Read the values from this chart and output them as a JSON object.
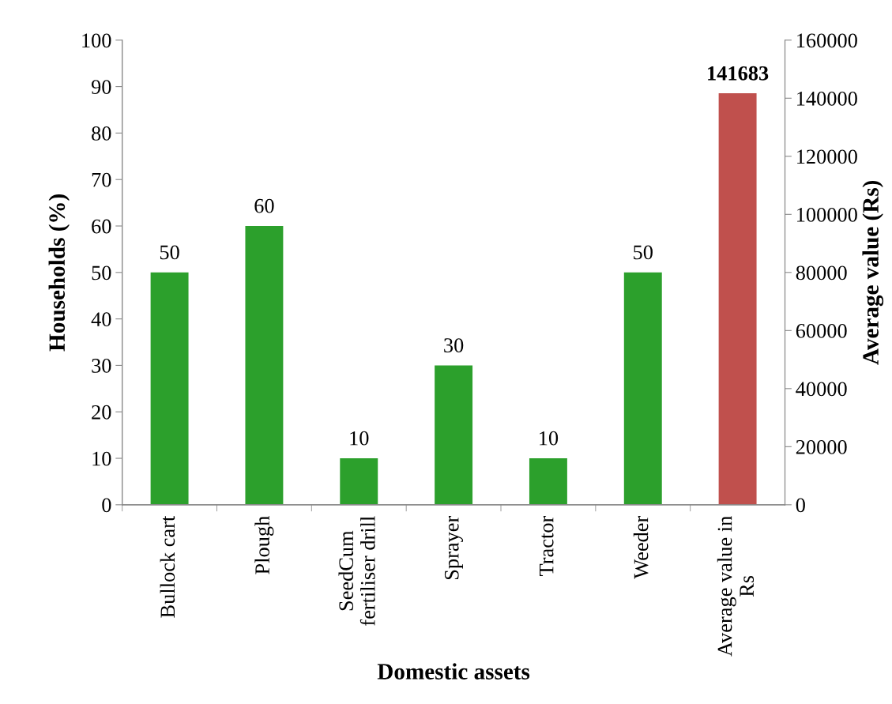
{
  "chart_data": {
    "type": "bar",
    "xlabel": "Domestic assets",
    "ylabel": "Households (%)",
    "y2label": "Average value (Rs)",
    "categories": [
      "Bullock cart",
      "Plough",
      "SeedCum\nfertiliser drill",
      "Sprayer",
      "Tractor",
      "Weeder",
      "Average value in\nRs"
    ],
    "series": [
      {
        "color": "#2ca02c",
        "values": [
          50,
          60,
          10,
          30,
          10,
          50,
          null
        ]
      },
      {
        "color": "#c0504d",
        "axis": "y2",
        "values": [
          null,
          null,
          null,
          null,
          null,
          null,
          141683
        ]
      }
    ],
    "ylim": [
      0,
      100
    ],
    "yticks": [
      0,
      10,
      20,
      30,
      40,
      50,
      60,
      70,
      80,
      90,
      100
    ],
    "y2lim": [
      0,
      160000
    ],
    "y2ticks": [
      0,
      20000,
      40000,
      60000,
      80000,
      100000,
      120000,
      140000,
      160000
    ],
    "data_labels": true,
    "grid": false,
    "legend": false
  }
}
